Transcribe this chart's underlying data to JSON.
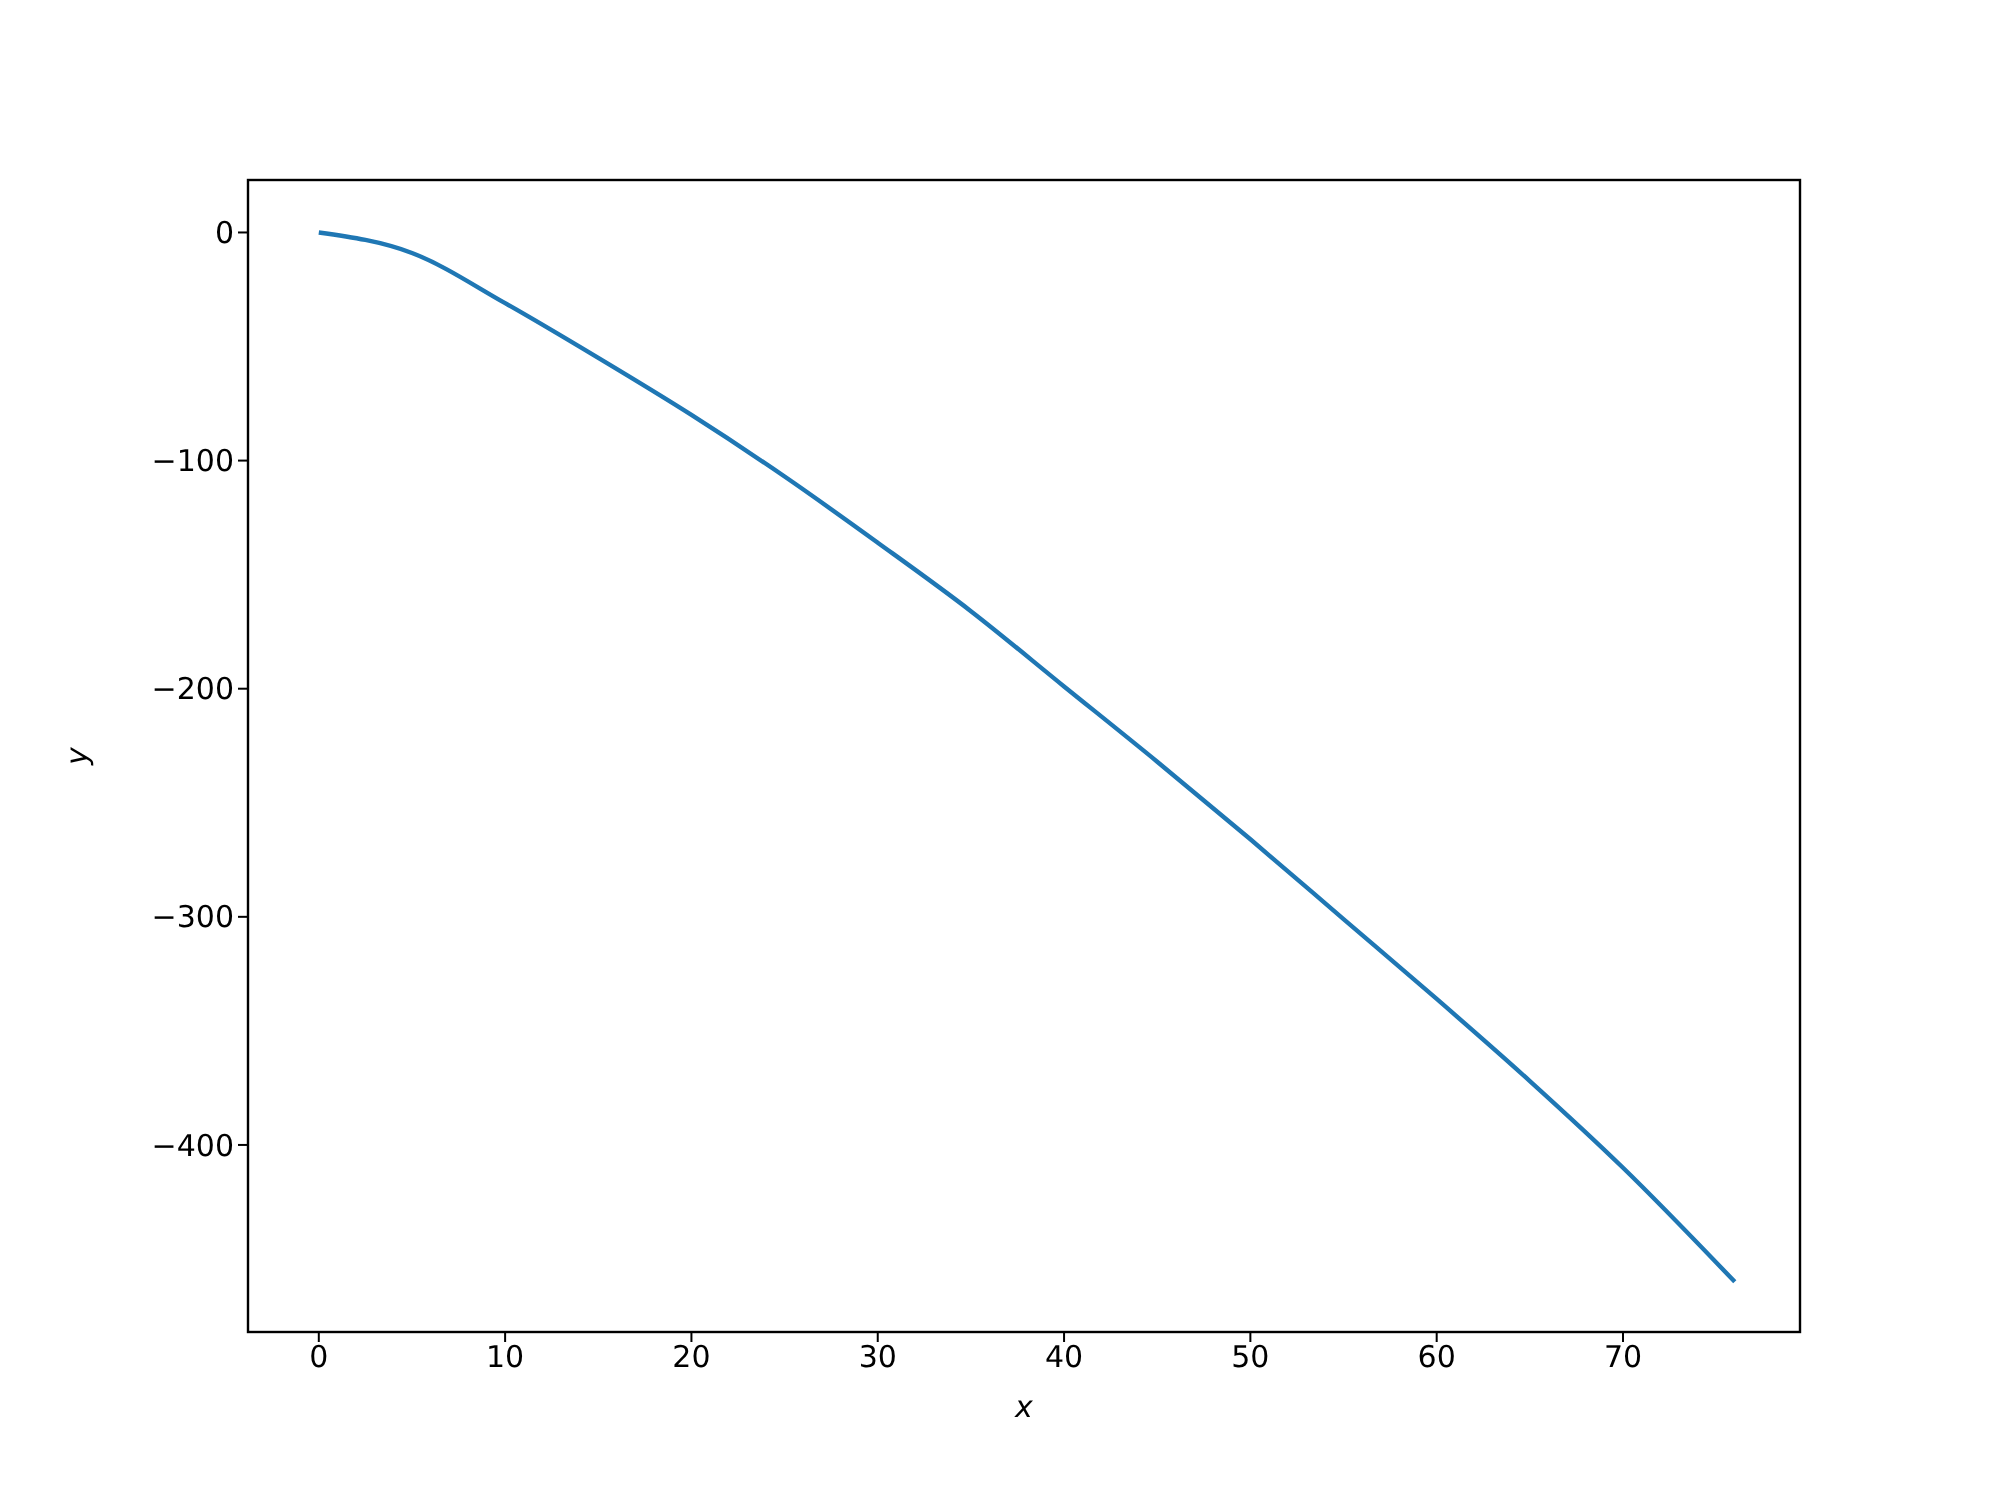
{
  "chart_data": {
    "type": "line",
    "xlabel": "x",
    "ylabel": "y",
    "x": [
      0,
      5,
      10,
      15,
      20,
      25,
      30,
      35,
      40,
      45,
      50,
      55,
      60,
      65,
      70,
      76
    ],
    "series": [
      {
        "color": "#1f77b4",
        "values": [
          0,
          -9,
          -31,
          -55,
          -80,
          -107,
          -136,
          -166,
          -199,
          -232,
          -266,
          -301,
          -336,
          -372,
          -410,
          -460
        ]
      }
    ],
    "xlim": [
      -3.8,
      79.5
    ],
    "ylim": [
      -482,
      23
    ],
    "xticks": [
      0,
      10,
      20,
      30,
      40,
      50,
      60,
      70
    ],
    "yticks": [
      {
        "value": -400,
        "label": "−400"
      },
      {
        "value": -300,
        "label": "−300"
      },
      {
        "value": -200,
        "label": "−200"
      },
      {
        "value": -100,
        "label": "−100"
      },
      0
    ],
    "grid": false,
    "legend": false,
    "marker": "none",
    "line_style": "solid"
  }
}
